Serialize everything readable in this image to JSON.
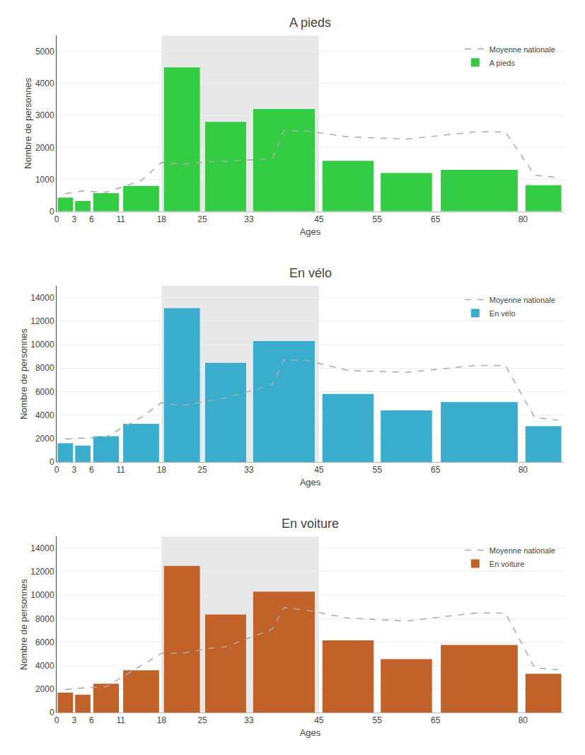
{
  "chart_data": [
    {
      "type": "bar",
      "title": "A pieds",
      "xlabel": "Ages",
      "ylabel": "Nombre de personnes",
      "bins": [
        0,
        3,
        6,
        11,
        18,
        25,
        33,
        45,
        55,
        65,
        80,
        87
      ],
      "xlim": [
        0,
        87
      ],
      "xticks": [
        0,
        3,
        6,
        11,
        18,
        25,
        33,
        45,
        55,
        65,
        80
      ],
      "ylim": [
        0,
        5500
      ],
      "yticks": [
        0,
        1000,
        2000,
        3000,
        4000,
        5000
      ],
      "grid": true,
      "legend": "upper right",
      "shade": {
        "x": [
          18,
          45
        ],
        "color": "#e8e8e8"
      },
      "series": [
        {
          "name": "Moyenne nationale",
          "type": "line",
          "line_style": "dashed",
          "color": "#aaaaaa",
          "x": [
            1.5,
            4.5,
            8.5,
            14.5,
            18,
            21.5,
            26,
            29,
            37,
            39,
            43,
            50,
            60,
            72,
            77,
            82,
            86
          ],
          "values": [
            560,
            640,
            600,
            960,
            1530,
            1470,
            1550,
            1570,
            1650,
            2530,
            2510,
            2330,
            2260,
            2490,
            2480,
            1130,
            1060
          ]
        },
        {
          "name": "A pieds",
          "type": "bar",
          "color": "#33cc44",
          "values": [
            430,
            330,
            570,
            800,
            4500,
            2800,
            3200,
            1580,
            1200,
            1300,
            820
          ]
        }
      ]
    },
    {
      "type": "bar",
      "title": "En vélo",
      "xlabel": "Ages",
      "ylabel": "Nombre de personnes",
      "bins": [
        0,
        3,
        6,
        11,
        18,
        25,
        33,
        45,
        55,
        65,
        80,
        87
      ],
      "xlim": [
        0,
        87
      ],
      "xticks": [
        0,
        3,
        6,
        11,
        18,
        25,
        33,
        45,
        55,
        65,
        80
      ],
      "ylim": [
        0,
        15000
      ],
      "yticks": [
        0,
        2000,
        4000,
        6000,
        8000,
        10000,
        12000,
        14000
      ],
      "grid": true,
      "legend": "upper right",
      "shade": {
        "x": [
          18,
          45
        ],
        "color": "#e8e8e8"
      },
      "series": [
        {
          "name": "Moyenne nationale",
          "type": "line",
          "line_style": "dashed",
          "color": "#aaaaaa",
          "x": [
            1.5,
            4.5,
            8.5,
            14.5,
            18,
            21.5,
            26,
            29,
            37,
            39,
            43,
            50,
            60,
            72,
            77,
            82,
            86
          ],
          "values": [
            1950,
            2050,
            2150,
            3800,
            5050,
            4800,
            5200,
            5450,
            6600,
            8700,
            8650,
            7800,
            7640,
            8230,
            8210,
            3800,
            3560
          ]
        },
        {
          "name": "En vélo",
          "type": "bar",
          "color": "#3aadcc",
          "values": [
            1600,
            1400,
            2200,
            3250,
            13100,
            8450,
            10300,
            5800,
            4400,
            5100,
            3050
          ]
        }
      ]
    },
    {
      "type": "bar",
      "title": "En voiture",
      "xlabel": "Ages",
      "ylabel": "Nombre de personnes",
      "bins": [
        0,
        3,
        6,
        11,
        18,
        25,
        33,
        45,
        55,
        65,
        80,
        87
      ],
      "xlim": [
        0,
        87
      ],
      "xticks": [
        0,
        3,
        6,
        11,
        18,
        25,
        33,
        45,
        55,
        65,
        80
      ],
      "ylim": [
        0,
        15000
      ],
      "yticks": [
        0,
        2000,
        4000,
        6000,
        8000,
        10000,
        12000,
        14000
      ],
      "grid": true,
      "legend": "upper right",
      "shade": {
        "x": [
          18,
          45
        ],
        "color": "#e8e8e8"
      },
      "series": [
        {
          "name": "Moyenne nationale",
          "type": "line",
          "line_style": "dashed",
          "color": "#aaaaaa",
          "x": [
            1.5,
            4.5,
            8.5,
            14.5,
            18,
            21.5,
            26,
            29,
            37,
            39,
            43,
            50,
            60,
            72,
            77,
            82,
            86
          ],
          "values": [
            1950,
            2100,
            2200,
            4000,
            5050,
            5050,
            5450,
            5600,
            7100,
            8950,
            8700,
            8050,
            7800,
            8480,
            8470,
            3820,
            3650
          ]
        },
        {
          "name": "En voiture",
          "type": "bar",
          "color": "#c0622a",
          "values": [
            1700,
            1520,
            2450,
            3600,
            12500,
            8350,
            10300,
            6150,
            4550,
            5750,
            3300
          ]
        }
      ]
    }
  ]
}
